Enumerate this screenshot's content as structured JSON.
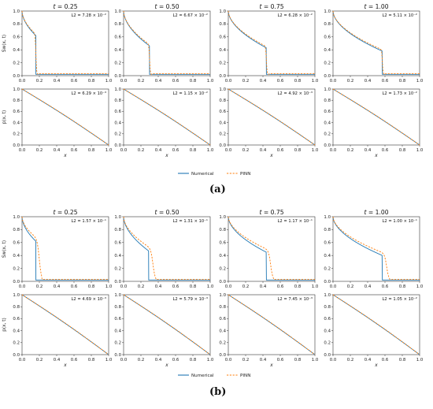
{
  "figure": {
    "panel_labels": [
      "(a)",
      "(b)"
    ],
    "legend": {
      "numerical": "Numerical",
      "pinn": "PINN"
    }
  },
  "colors": {
    "numerical": "#1f77b4",
    "pinn": "#ff7f0e"
  },
  "chart_data": [
    {
      "type": "line",
      "panel": "(a)",
      "titles": [
        "t = 0.25",
        "t = 0.50",
        "t = 0.75",
        "t = 1.00"
      ],
      "xlabel": "x",
      "xlim": [
        0,
        1
      ],
      "ylim": [
        0,
        1
      ],
      "xticks": [
        0.0,
        0.2,
        0.4,
        0.6,
        0.8,
        1.0
      ],
      "yticks": [
        0.0,
        0.2,
        0.4,
        0.6,
        0.8,
        1.0
      ],
      "series_names": [
        "Numerical",
        "PINN"
      ],
      "rows": [
        {
          "ylabel": "Sw(x, t)",
          "quantity": "saturation",
          "l2": [
            "L2 = 7.28 × 10⁻²",
            "L2 = 6.67 × 10⁻²",
            "L2 = 6.28 × 10⁻²",
            "L2 = 5.11 × 10⁻²"
          ],
          "front_numerical": [
            0.16,
            0.3,
            0.44,
            0.57
          ],
          "front_pinn": [
            0.16,
            0.3,
            0.44,
            0.57
          ],
          "s_front": [
            0.62,
            0.46,
            0.43,
            0.38
          ]
        },
        {
          "ylabel": "p(x, t)",
          "quantity": "pressure",
          "l2": [
            "L2 = 6.29 × 10⁻³",
            "L2 = 1.15 × 10⁻²",
            "L2 = 4.92 × 10⁻³",
            "L2 = 1.73 × 10⁻²"
          ],
          "front_numerical": [
            0.16,
            0.3,
            0.44,
            0.57
          ]
        }
      ]
    },
    {
      "type": "line",
      "panel": "(b)",
      "titles": [
        "t = 0.25",
        "t = 0.50",
        "t = 0.75",
        "t = 1.00"
      ],
      "xlabel": "x",
      "xlim": [
        0,
        1
      ],
      "ylim": [
        0,
        1
      ],
      "xticks": [
        0.0,
        0.2,
        0.4,
        0.6,
        0.8,
        1.0
      ],
      "yticks": [
        0.0,
        0.2,
        0.4,
        0.6,
        0.8,
        1.0
      ],
      "series_names": [
        "Numerical",
        "PINN"
      ],
      "rows": [
        {
          "ylabel": "Sw(x, t)",
          "quantity": "saturation",
          "l2": [
            "L2 = 1.57 × 10⁻¹",
            "L2 = 1.31 × 10⁻¹",
            "L2 = 1.17 × 10⁻¹",
            "L2 = 1.00 × 10⁻¹"
          ],
          "front_numerical": [
            0.16,
            0.29,
            0.44,
            0.57
          ],
          "front_pinn": [
            0.2,
            0.34,
            0.49,
            0.62
          ],
          "s_front": [
            0.62,
            0.47,
            0.45,
            0.4
          ]
        },
        {
          "ylabel": "p(x, t)",
          "quantity": "pressure",
          "l2": [
            "L2 = 4.69 × 10⁻³",
            "L2 = 5.79 × 10⁻³",
            "L2 = 7.45 × 10⁻³",
            "L2 = 1.05 × 10⁻²"
          ],
          "front_numerical": [
            0.16,
            0.29,
            0.44,
            0.57
          ]
        }
      ]
    }
  ]
}
